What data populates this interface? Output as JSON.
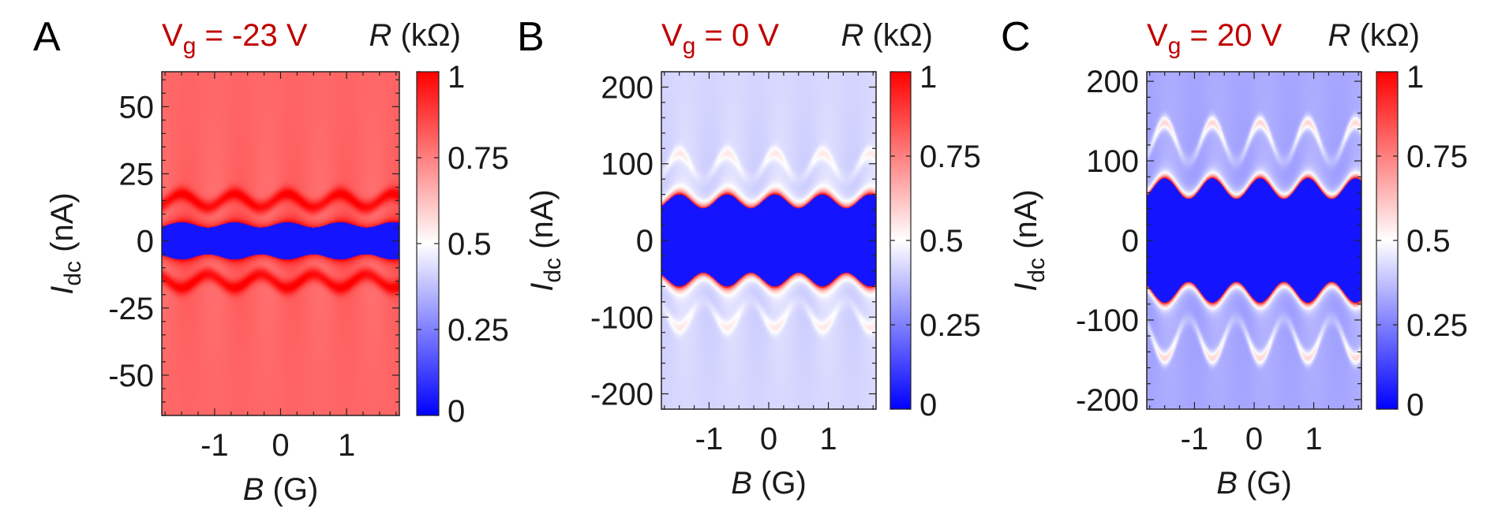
{
  "colors": {
    "title": "#c00000",
    "text": "#1a1a1a",
    "cmap_low": "#0000ff",
    "cmap_mid": "#ffffff",
    "cmap_high": "#ff0000"
  },
  "chart_data": [
    {
      "type": "heatmap",
      "panel": "A",
      "title_prefix": "V",
      "title_sub": "g",
      "title_suffix": " = -23 V",
      "xlabel_var": "B",
      "xlabel_unit": " (G)",
      "ylabel_var": "I",
      "ylabel_sub": "dc",
      "ylabel_unit": " (nA)",
      "xlim": [
        -1.8,
        1.8
      ],
      "ylim": [
        -65,
        63
      ],
      "xticks": [
        -1,
        0,
        1
      ],
      "xtick_labels": [
        "-1",
        "0",
        "1"
      ],
      "yticks": [
        50,
        25,
        0,
        -25,
        -50
      ],
      "ytick_labels": [
        "50",
        "25",
        "0",
        "-25",
        "-50"
      ],
      "colorbar_label_var": "R",
      "colorbar_label_unit": " (kΩ)",
      "colorbar_range": [
        0,
        1
      ],
      "colorbar_ticks": [
        1,
        0.75,
        0.5,
        0.25,
        0
      ],
      "colorbar_tick_labels": [
        "1",
        "0.75",
        "0.5",
        "0.25",
        "0"
      ],
      "background_R": 0.8,
      "switching_current_nA": [
        5,
        7
      ],
      "period_G": 0.8
    },
    {
      "type": "heatmap",
      "panel": "B",
      "title_prefix": "V",
      "title_sub": "g",
      "title_suffix": " = 0 V",
      "xlabel_var": "B",
      "xlabel_unit": " (G)",
      "ylabel_var": "I",
      "ylabel_sub": "dc",
      "ylabel_unit": " (nA)",
      "xlim": [
        -1.8,
        1.8
      ],
      "ylim": [
        -220,
        220
      ],
      "xticks": [
        -1,
        0,
        1
      ],
      "xtick_labels": [
        "-1",
        "0",
        "1"
      ],
      "yticks": [
        200,
        100,
        0,
        -100,
        -200
      ],
      "ytick_labels": [
        "200",
        "100",
        "0",
        "-100",
        "-200"
      ],
      "colorbar_label_var": "R",
      "colorbar_label_unit": " (kΩ)",
      "colorbar_range": [
        0,
        1
      ],
      "colorbar_ticks": [
        1,
        0.75,
        0.5,
        0.25,
        0
      ],
      "colorbar_tick_labels": [
        "1",
        "0.75",
        "0.5",
        "0.25",
        "0"
      ],
      "background_R": 0.42,
      "switching_current_nA": [
        42,
        60
      ],
      "period_G": 0.8
    },
    {
      "type": "heatmap",
      "panel": "C",
      "title_prefix": "V",
      "title_sub": "g",
      "title_suffix": " = 20 V",
      "xlabel_var": "B",
      "xlabel_unit": " (G)",
      "ylabel_var": "I",
      "ylabel_sub": "dc",
      "ylabel_unit": " (nA)",
      "xlim": [
        -1.8,
        1.8
      ],
      "ylim": [
        -212,
        212
      ],
      "xticks": [
        -1,
        0,
        1
      ],
      "xtick_labels": [
        "-1",
        "0",
        "1"
      ],
      "yticks": [
        200,
        100,
        0,
        -100,
        -200
      ],
      "ytick_labels": [
        "200",
        "100",
        "0",
        "-100",
        "-200"
      ],
      "colorbar_label_var": "R",
      "colorbar_label_unit": " (kΩ)",
      "colorbar_range": [
        0,
        1
      ],
      "colorbar_ticks": [
        1,
        0.75,
        0.5,
        0.25,
        0
      ],
      "colorbar_tick_labels": [
        "1",
        "0.75",
        "0.5",
        "0.25",
        "0"
      ],
      "background_R": 0.33,
      "switching_current_nA": [
        52,
        78
      ],
      "period_G": 0.8
    }
  ]
}
